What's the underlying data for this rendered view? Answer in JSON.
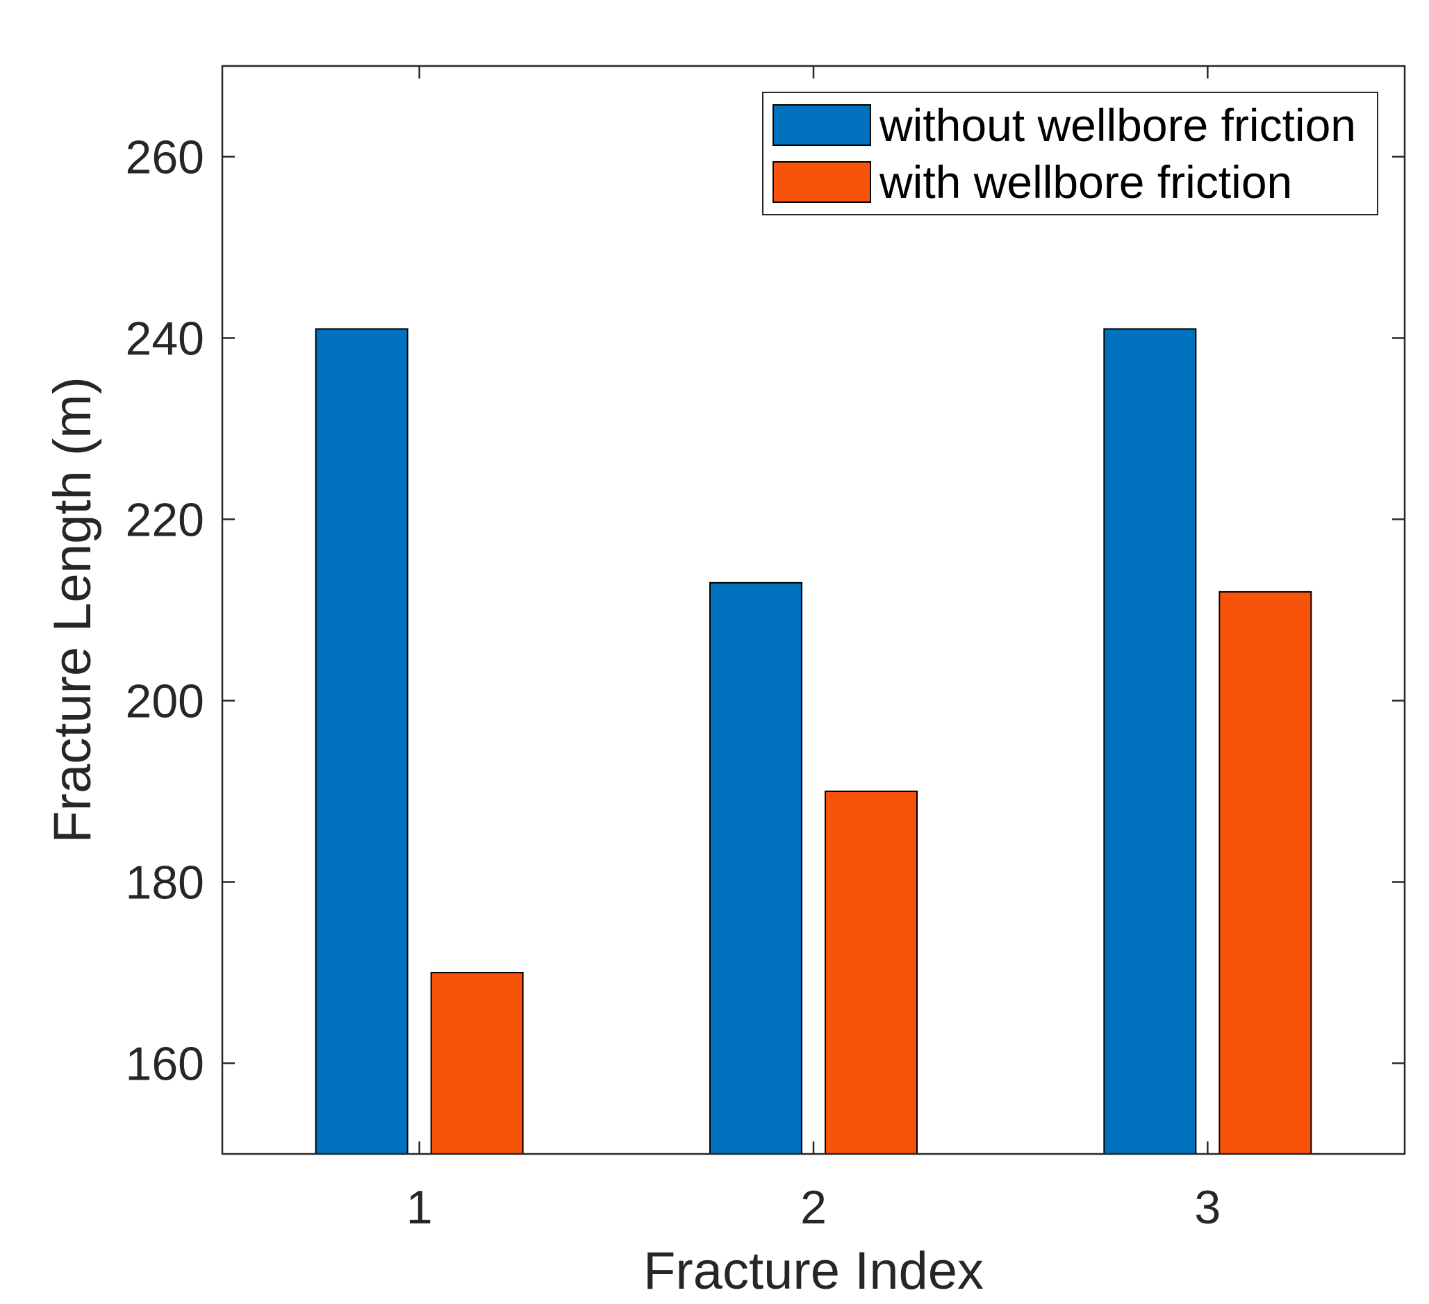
{
  "chart_data": {
    "type": "bar",
    "title": "",
    "xlabel": "Fracture Index",
    "ylabel": "Fracture Length (m)",
    "categories": [
      "1",
      "2",
      "3"
    ],
    "series": [
      {
        "name": "without wellbore friction",
        "color": "#0072BD",
        "values": [
          241,
          213,
          241
        ]
      },
      {
        "name": "with wellbore friction",
        "color": "#F7530A",
        "values": [
          170,
          190,
          212
        ]
      }
    ],
    "ylim": [
      150,
      270
    ],
    "yticks": [
      160,
      180,
      200,
      220,
      240,
      260
    ],
    "legend_position": "top-right",
    "grid": false
  }
}
